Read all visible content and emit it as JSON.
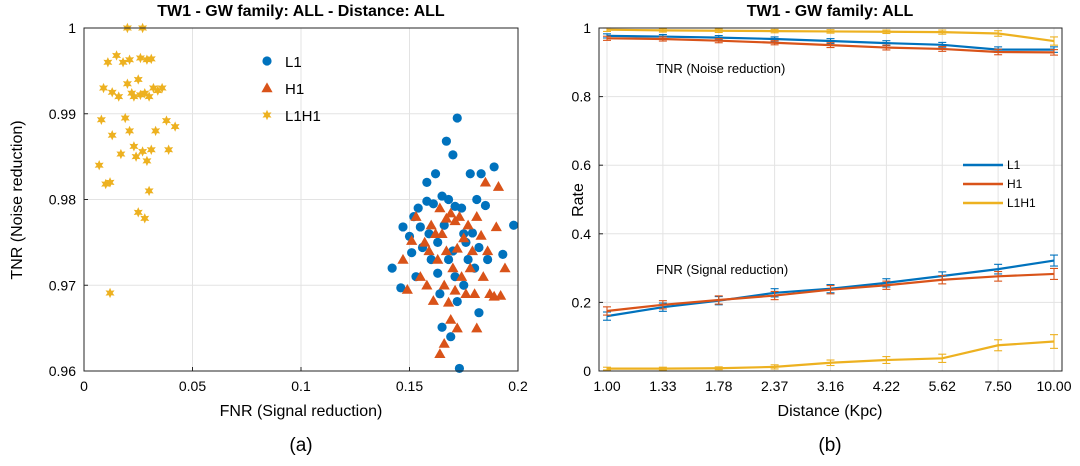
{
  "chart_data": [
    {
      "type": "scatter",
      "title": "TW1 - GW family: ALL - Distance: ALL",
      "xlabel": "FNR (Signal reduction)",
      "ylabel": "TNR (Noise reduction)",
      "xlim": [
        0,
        0.2
      ],
      "ylim": [
        0.96,
        1
      ],
      "xticks": [
        "0",
        "0.05",
        "0.1",
        "0.15",
        "0.2"
      ],
      "yticks": [
        "0.96",
        "0.97",
        "0.98",
        "0.99",
        "1"
      ],
      "xtick_values": [
        0,
        0.05,
        0.1,
        0.15,
        0.2
      ],
      "ytick_values": [
        0.96,
        0.97,
        0.98,
        0.99,
        1
      ],
      "grid": true,
      "legend_position": "top-center",
      "caption": "(a)",
      "series": [
        {
          "name": "L1",
          "marker": "circle",
          "color": "#0072BD",
          "points": [
            [
              0.142,
              0.972
            ],
            [
              0.146,
              0.9697
            ],
            [
              0.147,
              0.9768
            ],
            [
              0.15,
              0.9757
            ],
            [
              0.151,
              0.9738
            ],
            [
              0.152,
              0.978
            ],
            [
              0.153,
              0.971
            ],
            [
              0.154,
              0.979
            ],
            [
              0.155,
              0.9768
            ],
            [
              0.156,
              0.9744
            ],
            [
              0.158,
              0.982
            ],
            [
              0.158,
              0.9798
            ],
            [
              0.159,
              0.976
            ],
            [
              0.16,
              0.973
            ],
            [
              0.161,
              0.9795
            ],
            [
              0.162,
              0.983
            ],
            [
              0.163,
              0.975
            ],
            [
              0.163,
              0.9714
            ],
            [
              0.164,
              0.969
            ],
            [
              0.165,
              0.9804
            ],
            [
              0.165,
              0.9651
            ],
            [
              0.166,
              0.977
            ],
            [
              0.167,
              0.9868
            ],
            [
              0.168,
              0.98
            ],
            [
              0.168,
              0.973
            ],
            [
              0.169,
              0.964
            ],
            [
              0.17,
              0.9852
            ],
            [
              0.17,
              0.974
            ],
            [
              0.171,
              0.9792
            ],
            [
              0.171,
              0.971
            ],
            [
              0.172,
              0.9895
            ],
            [
              0.172,
              0.9681
            ],
            [
              0.173,
              0.9603
            ],
            [
              0.174,
              0.979
            ],
            [
              0.175,
              0.976
            ],
            [
              0.175,
              0.97
            ],
            [
              0.176,
              0.975
            ],
            [
              0.177,
              0.973
            ],
            [
              0.178,
              0.983
            ],
            [
              0.179,
              0.9761
            ],
            [
              0.18,
              0.972
            ],
            [
              0.181,
              0.98
            ],
            [
              0.182,
              0.9744
            ],
            [
              0.182,
              0.9668
            ],
            [
              0.183,
              0.983
            ],
            [
              0.185,
              0.9793
            ],
            [
              0.186,
              0.973
            ],
            [
              0.189,
              0.9838
            ],
            [
              0.193,
              0.9736
            ],
            [
              0.198,
              0.977
            ]
          ]
        },
        {
          "name": "H1",
          "marker": "triangle",
          "color": "#D95319",
          "points": [
            [
              0.147,
              0.973
            ],
            [
              0.149,
              0.9695
            ],
            [
              0.151,
              0.9752
            ],
            [
              0.153,
              0.978
            ],
            [
              0.155,
              0.971
            ],
            [
              0.157,
              0.975
            ],
            [
              0.158,
              0.97
            ],
            [
              0.159,
              0.974
            ],
            [
              0.16,
              0.977
            ],
            [
              0.161,
              0.9682
            ],
            [
              0.162,
              0.976
            ],
            [
              0.163,
              0.973
            ],
            [
              0.164,
              0.979
            ],
            [
              0.164,
              0.962
            ],
            [
              0.165,
              0.976
            ],
            [
              0.166,
              0.97
            ],
            [
              0.166,
              0.9632
            ],
            [
              0.167,
              0.9778
            ],
            [
              0.167,
              0.974
            ],
            [
              0.168,
              0.968
            ],
            [
              0.169,
              0.966
            ],
            [
              0.169,
              0.9784
            ],
            [
              0.17,
              0.972
            ],
            [
              0.171,
              0.9775
            ],
            [
              0.171,
              0.9694
            ],
            [
              0.172,
              0.9743
            ],
            [
              0.172,
              0.965
            ],
            [
              0.173,
              0.978
            ],
            [
              0.174,
              0.971
            ],
            [
              0.175,
              0.9755
            ],
            [
              0.176,
              0.969
            ],
            [
              0.177,
              0.977
            ],
            [
              0.178,
              0.972
            ],
            [
              0.179,
              0.974
            ],
            [
              0.18,
              0.969
            ],
            [
              0.181,
              0.978
            ],
            [
              0.181,
              0.965
            ],
            [
              0.183,
              0.9758
            ],
            [
              0.184,
              0.971
            ],
            [
              0.185,
              0.982
            ],
            [
              0.186,
              0.974
            ],
            [
              0.187,
              0.969
            ],
            [
              0.189,
              0.9687
            ],
            [
              0.19,
              0.9768
            ],
            [
              0.191,
              0.9815
            ],
            [
              0.192,
              0.9688
            ],
            [
              0.194,
              0.972
            ]
          ]
        },
        {
          "name": "L1H1",
          "marker": "star",
          "color": "#EDB120",
          "points": [
            [
              0.007,
              0.984
            ],
            [
              0.008,
              0.9893
            ],
            [
              0.009,
              0.993
            ],
            [
              0.01,
              0.9818
            ],
            [
              0.011,
              0.996
            ],
            [
              0.012,
              0.9691
            ],
            [
              0.012,
              0.982
            ],
            [
              0.013,
              0.9925
            ],
            [
              0.013,
              0.9875
            ],
            [
              0.015,
              0.9968
            ],
            [
              0.016,
              0.992
            ],
            [
              0.017,
              0.9853
            ],
            [
              0.018,
              0.996
            ],
            [
              0.019,
              0.9895
            ],
            [
              0.02,
              0.9935
            ],
            [
              0.02,
              1.0
            ],
            [
              0.021,
              0.9963
            ],
            [
              0.021,
              0.988
            ],
            [
              0.022,
              0.9924
            ],
            [
              0.023,
              0.9862
            ],
            [
              0.023,
              0.992
            ],
            [
              0.024,
              0.985
            ],
            [
              0.025,
              0.994
            ],
            [
              0.025,
              0.9785
            ],
            [
              0.026,
              0.9922
            ],
            [
              0.026,
              0.9965
            ],
            [
              0.027,
              1.0
            ],
            [
              0.027,
              0.9856
            ],
            [
              0.028,
              0.9778
            ],
            [
              0.028,
              0.9924
            ],
            [
              0.029,
              0.9963
            ],
            [
              0.029,
              0.9845
            ],
            [
              0.03,
              0.992
            ],
            [
              0.03,
              0.981
            ],
            [
              0.031,
              0.9964
            ],
            [
              0.031,
              0.9858
            ],
            [
              0.032,
              0.993
            ],
            [
              0.033,
              0.988
            ],
            [
              0.034,
              0.9927
            ],
            [
              0.036,
              0.993
            ],
            [
              0.038,
              0.9892
            ],
            [
              0.039,
              0.9858
            ],
            [
              0.042,
              0.9885
            ]
          ]
        }
      ]
    },
    {
      "type": "line",
      "title": "TW1 - GW family: ALL",
      "xlabel": "Distance (Kpc)",
      "ylabel": "Rate",
      "categories": [
        "1.00",
        "1.33",
        "1.78",
        "2.37",
        "3.16",
        "4.22",
        "5.62",
        "7.50",
        "10.00"
      ],
      "ylim": [
        0,
        1
      ],
      "yticks": [
        "0",
        "0.2",
        "0.4",
        "0.6",
        "0.8",
        "1"
      ],
      "ytick_values": [
        0,
        0.2,
        0.4,
        0.6,
        0.8,
        1
      ],
      "grid": true,
      "legend_position": "right",
      "error_bars": true,
      "caption": "(b)",
      "annotations": [
        "TNR (Noise reduction)",
        "FNR (Signal reduction)"
      ],
      "series": [
        {
          "name": "L1",
          "metric": "TNR",
          "color": "#0072BD",
          "values": [
            0.977,
            0.975,
            0.972,
            0.968,
            0.962,
            0.956,
            0.951,
            0.937,
            0.937
          ],
          "err": [
            0.006,
            0.006,
            0.006,
            0.006,
            0.007,
            0.007,
            0.007,
            0.008,
            0.008
          ]
        },
        {
          "name": "H1",
          "metric": "TNR",
          "color": "#D95319",
          "values": [
            0.97,
            0.968,
            0.963,
            0.957,
            0.95,
            0.943,
            0.939,
            0.93,
            0.929
          ],
          "err": [
            0.006,
            0.006,
            0.006,
            0.006,
            0.007,
            0.007,
            0.007,
            0.008,
            0.008
          ]
        },
        {
          "name": "L1H1",
          "metric": "TNR",
          "color": "#EDB120",
          "values": [
            0.995,
            0.993,
            0.992,
            0.991,
            0.99,
            0.989,
            0.988,
            0.984,
            0.962
          ],
          "err": [
            0.005,
            0.005,
            0.005,
            0.005,
            0.005,
            0.005,
            0.006,
            0.008,
            0.012
          ]
        },
        {
          "name": "L1",
          "metric": "FNR",
          "color": "#0072BD",
          "values": [
            0.16,
            0.186,
            0.205,
            0.228,
            0.24,
            0.257,
            0.277,
            0.297,
            0.322
          ],
          "err": [
            0.012,
            0.012,
            0.012,
            0.012,
            0.012,
            0.012,
            0.012,
            0.014,
            0.016
          ]
        },
        {
          "name": "H1",
          "metric": "FNR",
          "color": "#D95319",
          "values": [
            0.175,
            0.193,
            0.207,
            0.22,
            0.237,
            0.25,
            0.266,
            0.276,
            0.283
          ],
          "err": [
            0.012,
            0.012,
            0.012,
            0.012,
            0.012,
            0.012,
            0.012,
            0.014,
            0.016
          ]
        },
        {
          "name": "L1H1",
          "metric": "FNR",
          "color": "#EDB120",
          "values": [
            0.007,
            0.007,
            0.008,
            0.012,
            0.024,
            0.032,
            0.037,
            0.075,
            0.086
          ],
          "err": [
            0.004,
            0.004,
            0.004,
            0.006,
            0.008,
            0.01,
            0.012,
            0.016,
            0.02
          ]
        }
      ]
    }
  ]
}
